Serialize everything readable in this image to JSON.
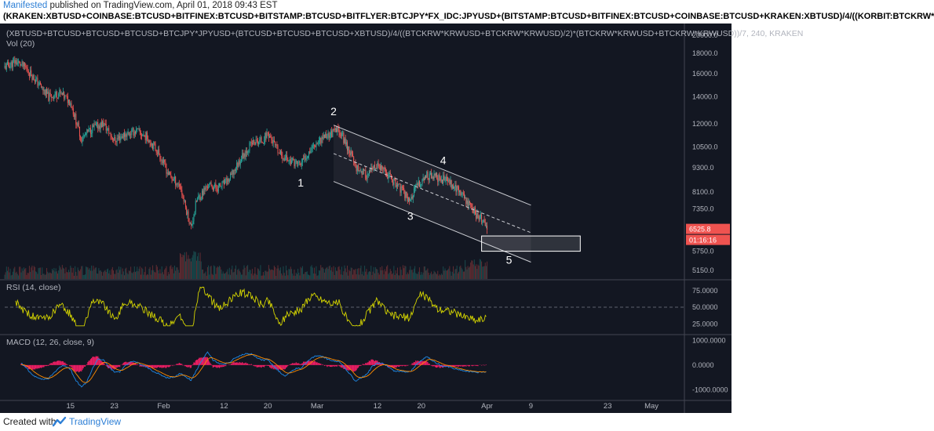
{
  "header": {
    "author": "Manifested",
    "published_text": " published on TradingView.com, April 01, 2018 09:43 EST",
    "symbol_formula": "(KRAKEN:XBTUSD+COINBASE:BTCUSD+BITFINEX:BTCUSD+BITSTAMP:BTCUSD+BITFLYER:BTCJPY*FX_IDC:JPYUSD+(BITSTAMP:BTCUSD+BITFINEX:BTCUSD+COINBASE:BTCUSD+KRAKEN:XBTUSD)/4/((KORBIT:BTCKRW*"
  },
  "footer": {
    "created_with": "Created with",
    "brand": "TradingView"
  },
  "chart_data": [
    {
      "type": "candlestick",
      "title": "(XBTUSD+BTCUSD+BTCUSD+BTCUSD+BTCJPY*JPYUSD+(BTCUSD+BTCUSD+BTCUSD+XBTUSD)/4/((BTCKRW*KRWUSD+BTCKRW*KRWUSD)/2)*(BTCKRW*KRWUSD+BTCKRW*KRWUSD))/7, 240, KRAKEN",
      "volume_label": "Vol (20)",
      "log_scale": true,
      "ylim": [
        4900,
        21000
      ],
      "y_ticks": [
        "20000.0",
        "18000.0",
        "16000.0",
        "14000.0",
        "12000.0",
        "10500.0",
        "9300.0",
        "8100.0",
        "7350.0",
        "5750.0",
        "5150.0"
      ],
      "y_tick_values": [
        20000,
        18000,
        16000,
        14000,
        12000,
        10500,
        9300,
        8100,
        7350,
        5750,
        5150
      ],
      "x_range_days": [
        "2018-01-03",
        "2018-05-07"
      ],
      "x_ticks": [
        {
          "label": "15",
          "date": "2018-01-15"
        },
        {
          "label": "23",
          "date": "2018-01-23"
        },
        {
          "label": "Feb",
          "date": "2018-02-01"
        },
        {
          "label": "12",
          "date": "2018-02-12"
        },
        {
          "label": "20",
          "date": "2018-02-20"
        },
        {
          "label": "Mar",
          "date": "2018-03-01"
        },
        {
          "label": "12",
          "date": "2018-03-12"
        },
        {
          "label": "20",
          "date": "2018-03-20"
        },
        {
          "label": "Apr",
          "date": "2018-04-01"
        },
        {
          "label": "9",
          "date": "2018-04-09"
        },
        {
          "label": "23",
          "date": "2018-04-23"
        },
        {
          "label": "May",
          "date": "2018-05-01"
        }
      ],
      "price_path": [
        [
          "2018-01-03",
          16600
        ],
        [
          "2018-01-05",
          17200
        ],
        [
          "2018-01-07",
          16500
        ],
        [
          "2018-01-09",
          15200
        ],
        [
          "2018-01-11",
          14000
        ],
        [
          "2018-01-13",
          14300
        ],
        [
          "2018-01-15",
          13600
        ],
        [
          "2018-01-17",
          11000
        ],
        [
          "2018-01-19",
          11700
        ],
        [
          "2018-01-21",
          12000
        ],
        [
          "2018-01-23",
          10900
        ],
        [
          "2018-01-25",
          11300
        ],
        [
          "2018-01-27",
          11500
        ],
        [
          "2018-01-29",
          11100
        ],
        [
          "2018-01-31",
          10200
        ],
        [
          "2018-02-02",
          8900
        ],
        [
          "2018-02-04",
          8400
        ],
        [
          "2018-02-05",
          7400
        ],
        [
          "2018-02-06",
          6600
        ],
        [
          "2018-02-07",
          7700
        ],
        [
          "2018-02-09",
          8400
        ],
        [
          "2018-02-11",
          8300
        ],
        [
          "2018-02-13",
          8700
        ],
        [
          "2018-02-15",
          9800
        ],
        [
          "2018-02-17",
          10700
        ],
        [
          "2018-02-19",
          10900
        ],
        [
          "2018-02-20",
          11400
        ],
        [
          "2018-02-22",
          10100
        ],
        [
          "2018-02-24",
          9700
        ],
        [
          "2018-02-26",
          9500
        ],
        [
          "2018-02-28",
          10500
        ],
        [
          "2018-03-02",
          11100
        ],
        [
          "2018-03-04",
          11400
        ],
        [
          "2018-03-05",
          11600
        ],
        [
          "2018-03-07",
          10200
        ],
        [
          "2018-03-08",
          9400
        ],
        [
          "2018-03-10",
          8900
        ],
        [
          "2018-03-12",
          9400
        ],
        [
          "2018-03-14",
          8900
        ],
        [
          "2018-03-16",
          8300
        ],
        [
          "2018-03-18",
          7700
        ],
        [
          "2018-03-19",
          8300
        ],
        [
          "2018-03-21",
          8900
        ],
        [
          "2018-03-23",
          8800
        ],
        [
          "2018-03-25",
          8600
        ],
        [
          "2018-03-27",
          8100
        ],
        [
          "2018-03-29",
          7500
        ],
        [
          "2018-03-30",
          7100
        ],
        [
          "2018-03-31",
          6900
        ],
        [
          "2018-04-01",
          6525.8
        ]
      ],
      "last_price": "6525.8",
      "countdown": "01:16:16",
      "annotations": [
        {
          "label": "1",
          "date": "2018-02-26",
          "price": 8350
        },
        {
          "label": "2",
          "date": "2018-03-04",
          "price": 12600
        },
        {
          "label": "3",
          "date": "2018-03-18",
          "price": 6900
        },
        {
          "label": "4",
          "date": "2018-03-24",
          "price": 9500
        },
        {
          "label": "5",
          "date": "2018-04-05",
          "price": 5350
        }
      ],
      "channel": {
        "upper": [
          [
            "2018-03-04",
            11900
          ],
          [
            "2018-04-09",
            7500
          ]
        ],
        "lower": [
          [
            "2018-03-04",
            8600
          ],
          [
            "2018-04-09",
            5400
          ]
        ],
        "mid": [
          [
            "2018-03-04",
            10100
          ],
          [
            "2018-04-09",
            6400
          ]
        ]
      },
      "target_zone": {
        "from_date": "2018-03-31",
        "to_date": "2018-04-18",
        "low": 5750,
        "high": 6280
      }
    },
    {
      "type": "line",
      "title": "RSI (14, close)",
      "ylim": [
        10,
        90
      ],
      "y_ticks": [
        "75.0000",
        "50.0000",
        "25.0000"
      ],
      "y_tick_values": [
        75,
        50,
        25
      ],
      "series_color": "#d4d400"
    },
    {
      "type": "line",
      "title": "MACD (12, 26, close, 9)",
      "ylim": [
        -1400,
        1200
      ],
      "y_ticks": [
        "1000.0000",
        "0.0000",
        "-1000.0000"
      ],
      "y_tick_values": [
        1000,
        0,
        -1000
      ],
      "series": [
        {
          "color": "#1e88e5"
        },
        {
          "color": "#ff8c00"
        },
        {
          "color": "#e91e63"
        }
      ]
    }
  ],
  "colors": {
    "background": "#131722",
    "up": "#26a69a",
    "down": "#ef5350",
    "text": "#b2b5be",
    "price_label": "#ef5350"
  }
}
